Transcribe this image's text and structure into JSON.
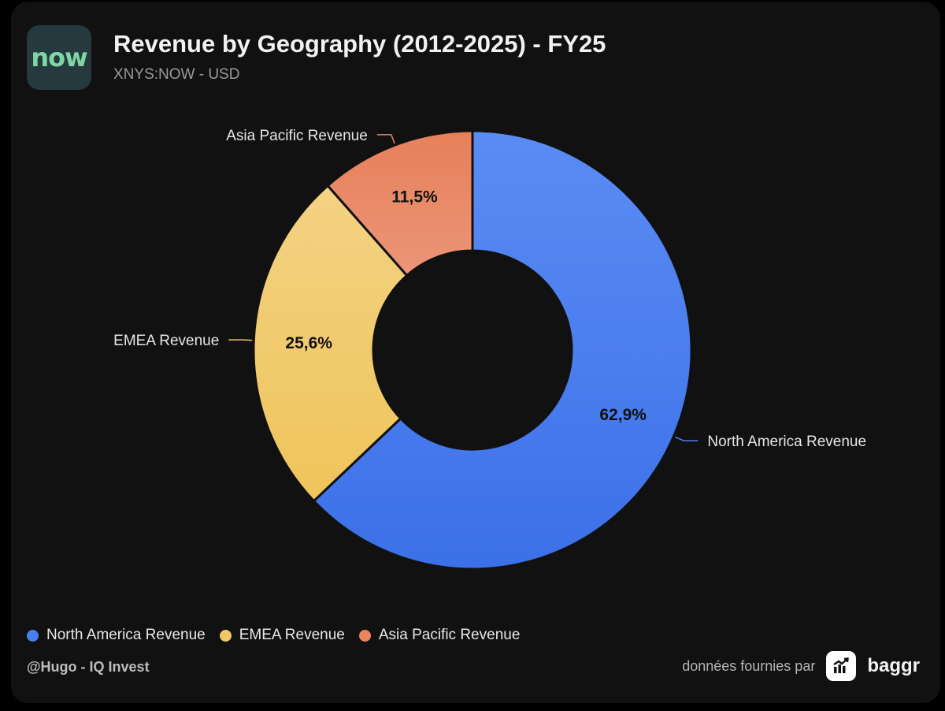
{
  "header": {
    "logo_text": "now",
    "title": "Revenue by Geography (2012-2025) - FY25",
    "subtitle": "XNYS:NOW - USD"
  },
  "chart_data": {
    "type": "pie",
    "donut": true,
    "categories": [
      "North America Revenue",
      "EMEA Revenue",
      "Asia Pacific Revenue"
    ],
    "values": [
      62.9,
      25.6,
      11.5
    ],
    "value_labels": [
      "62,9%",
      "25,6%",
      "11,5%"
    ],
    "colors": [
      "#4a7ef0",
      "#f1c766",
      "#e9865f"
    ],
    "legend_position": "bottom-left"
  },
  "legend": {
    "items": [
      {
        "label": "North America Revenue",
        "color": "#4a7ef0"
      },
      {
        "label": "EMEA Revenue",
        "color": "#f1c766"
      },
      {
        "label": "Asia Pacific Revenue",
        "color": "#e9865f"
      }
    ]
  },
  "footer": {
    "author": "@Hugo - IQ Invest",
    "provided_by": "données fournies par",
    "brand": "baggr"
  }
}
